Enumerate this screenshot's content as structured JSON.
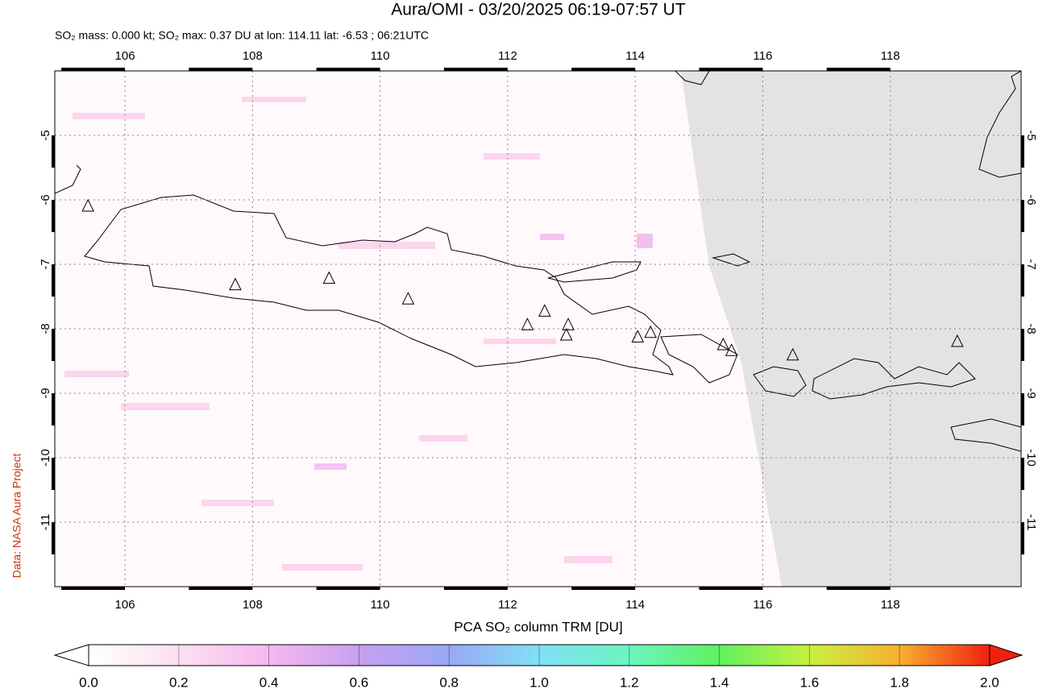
{
  "map": {
    "type": "map",
    "title": "Aura/OMI - 03/20/2025 06:19-07:57 UT",
    "subtitle": "SO₂ mass: 0.000 kt; SO₂ max: 0.37 DU at lon: 114.11 lat: -6.53 ; 06:21UTC",
    "credit": "Data: NASA Aura Project",
    "xlim": [
      104.9,
      120.05
    ],
    "ylim": [
      -12,
      -4
    ],
    "xticks": [
      106,
      108,
      110,
      112,
      114,
      116,
      118
    ],
    "yticks": [
      -5,
      -6,
      -7,
      -8,
      -9,
      -10,
      -11
    ],
    "grid": true,
    "volcanoes": {
      "lon": [
        105.42,
        107.73,
        109.2,
        110.44,
        112.31,
        112.58,
        112.95,
        112.92,
        114.04,
        114.24,
        115.38,
        115.51,
        116.47,
        119.05
      ],
      "lat": [
        -6.1,
        -7.32,
        -7.22,
        -7.54,
        -7.94,
        -7.73,
        -7.94,
        -8.1,
        -8.13,
        -8.06,
        -8.25,
        -8.34,
        -8.41,
        -8.2
      ]
    },
    "colorbar": {
      "label": "PCA SO₂ column TRM [DU]",
      "lim": [
        0,
        2
      ],
      "ticks": [
        {
          "value": 0,
          "label": "0.0"
        },
        0.2,
        0.4,
        0.6,
        0.8,
        {
          "value": 1,
          "label": "1.0"
        },
        1.2,
        1.4,
        1.6,
        1.8,
        {
          "value": 2,
          "label": "2.0"
        }
      ]
    }
  }
}
